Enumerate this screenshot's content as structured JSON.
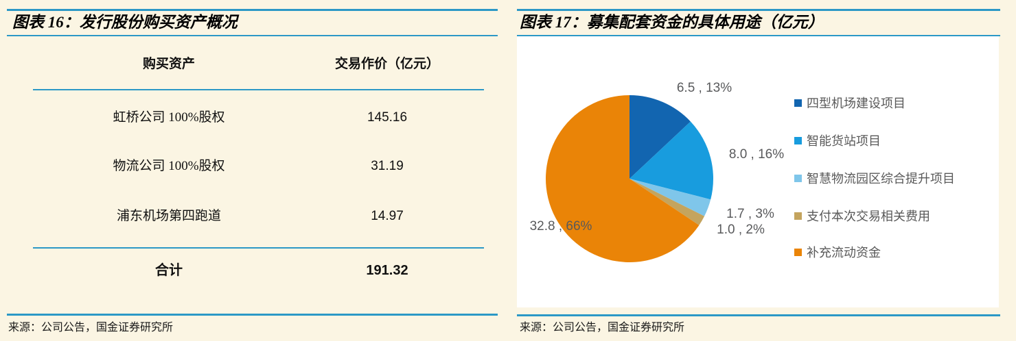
{
  "colors": {
    "page_background": "#FBF5E3",
    "rule_blue": "#2B98C6",
    "chart_background": "#FFFFFF",
    "chart_text_gray": "#58595B"
  },
  "chart_data": [
    {
      "type": "table",
      "figure_title": "图表 16：发行股份购买资产概况",
      "columns": [
        "购买资产",
        "交易作价（亿元）"
      ],
      "rows": [
        [
          "虹桥公司 100%股权",
          "145.16"
        ],
        [
          "物流公司 100%股权",
          "31.19"
        ],
        [
          "浦东机场第四跑道",
          "14.97"
        ]
      ],
      "total_row": [
        "合计",
        "191.32"
      ],
      "source": "来源：公司公告，国金证券研究所"
    },
    {
      "type": "pie",
      "figure_title": "图表 17：募集配套资金的具体用途（亿元）",
      "unit": "亿元",
      "direction": "clockwise",
      "start_angle_deg": 0,
      "legend_position": "right",
      "slices": [
        {
          "label": "四型机场建设项目",
          "value": 6.5,
          "pct": "13%",
          "color": "#1265B0",
          "data_label": "6.5 , 13%"
        },
        {
          "label": "智能货站项目",
          "value": 8.0,
          "pct": "16%",
          "color": "#189CDE",
          "data_label": "8.0 , 16%"
        },
        {
          "label": "智慧物流园区综合提升项目",
          "value": 1.7,
          "pct": "3%",
          "color": "#7FC6EA",
          "data_label": "1.7 , 3%"
        },
        {
          "label": "支付本次交易相关费用",
          "value": 1.0,
          "pct": "2%",
          "color": "#C4A45E",
          "data_label": "1.0 , 2%"
        },
        {
          "label": "补充流动资金",
          "value": 32.8,
          "pct": "66%",
          "color": "#EA8407",
          "data_label": "32.8 , 66%"
        }
      ],
      "source": "来源：公司公告，国金证券研究所"
    }
  ]
}
